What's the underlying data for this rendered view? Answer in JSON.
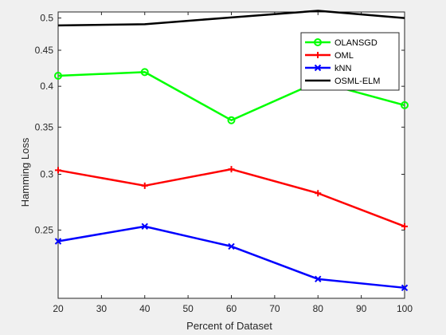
{
  "chart_data": {
    "type": "line",
    "title": "",
    "xlabel": "Percent of Dataset",
    "ylabel": "Hamming Loss",
    "x": [
      20,
      40,
      60,
      80,
      100
    ],
    "xlim": [
      20,
      100
    ],
    "xticks": [
      20,
      30,
      40,
      50,
      60,
      70,
      80,
      90,
      100
    ],
    "xtick_labels": [
      "20",
      "30",
      "40",
      "50",
      "60",
      "70",
      "80",
      "90",
      "100"
    ],
    "ylim": [
      0.2,
      0.51
    ],
    "yscale": "log",
    "yticks": [
      0.25,
      0.3,
      0.35,
      0.4,
      0.45,
      0.5
    ],
    "ytick_labels": [
      "0.25",
      "0.3",
      "0.35",
      "0.4",
      "0.45",
      "0.5"
    ],
    "grid": false,
    "legend_position": "top-right",
    "series": [
      {
        "name": "OLANSGD",
        "color": "#00ff00",
        "marker": "circle",
        "values": [
          0.414,
          0.419,
          0.358,
          0.406,
          0.376
        ]
      },
      {
        "name": "OML",
        "color": "#ff0000",
        "marker": "plus",
        "values": [
          0.304,
          0.289,
          0.305,
          0.282,
          0.253
        ]
      },
      {
        "name": "kNN",
        "color": "#0000ff",
        "marker": "x",
        "values": [
          0.241,
          0.253,
          0.237,
          0.213,
          0.207
        ]
      },
      {
        "name": "OSML-ELM",
        "color": "#000000",
        "marker": "none",
        "values": [
          0.488,
          0.49,
          0.501,
          0.512,
          0.5
        ]
      }
    ]
  }
}
